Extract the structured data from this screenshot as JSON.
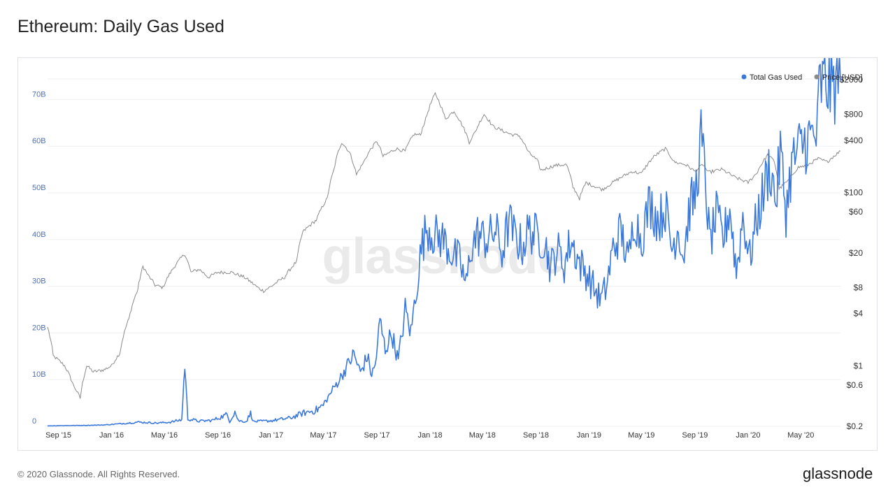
{
  "page": {
    "title": "Ethereum: Daily Gas Used",
    "copyright": "© 2020 Glassnode. All Rights Reserved.",
    "brand": "glassnode",
    "watermark": "glassnode"
  },
  "colors": {
    "gas": "#3a78dc",
    "price": "#8a8a8a",
    "left_axis": "#4c70b8"
  },
  "chart_data": {
    "type": "line",
    "title": "Ethereum: Daily Gas Used",
    "legend": {
      "placement": "top-right",
      "entries": [
        "Total Gas Used",
        "Price [USD]"
      ]
    },
    "grid": true,
    "x_range": [
      "2015-08-07",
      "2020-07-31"
    ],
    "x_ticks": [
      {
        "date": "2015-09-01",
        "label": "Sep '15"
      },
      {
        "date": "2016-01-01",
        "label": "Jan '16"
      },
      {
        "date": "2016-05-01",
        "label": "May '16"
      },
      {
        "date": "2016-09-01",
        "label": "Sep '16"
      },
      {
        "date": "2017-01-01",
        "label": "Jan '17"
      },
      {
        "date": "2017-05-01",
        "label": "May '17"
      },
      {
        "date": "2017-09-01",
        "label": "Sep '17"
      },
      {
        "date": "2018-01-01",
        "label": "Jan '18"
      },
      {
        "date": "2018-05-01",
        "label": "May '18"
      },
      {
        "date": "2018-09-01",
        "label": "Sep '18"
      },
      {
        "date": "2019-01-01",
        "label": "Jan '19"
      },
      {
        "date": "2019-05-01",
        "label": "May '19"
      },
      {
        "date": "2019-09-01",
        "label": "Sep '19"
      },
      {
        "date": "2020-01-01",
        "label": "Jan '20"
      },
      {
        "date": "2020-05-01",
        "label": "May '20"
      }
    ],
    "y_left": {
      "label": "",
      "range": [
        0,
        75000000000
      ],
      "ticks": [
        {
          "value": 0,
          "label": "0"
        },
        {
          "value": 10000000000,
          "label": "10B"
        },
        {
          "value": 20000000000,
          "label": "20B"
        },
        {
          "value": 30000000000,
          "label": "30B"
        },
        {
          "value": 40000000000,
          "label": "40B"
        },
        {
          "value": 50000000000,
          "label": "50B"
        },
        {
          "value": 60000000000,
          "label": "60B"
        },
        {
          "value": 70000000000,
          "label": "70B"
        }
      ]
    },
    "y_right": {
      "label": "",
      "scale": "log",
      "range": [
        0.2,
        2200
      ],
      "ticks": [
        {
          "value": 0.2,
          "label": "$0.2"
        },
        {
          "value": 0.6,
          "label": "$0.6"
        },
        {
          "value": 1,
          "label": "$1"
        },
        {
          "value": 4,
          "label": "$4"
        },
        {
          "value": 8,
          "label": "$8"
        },
        {
          "value": 20,
          "label": "$20"
        },
        {
          "value": 60,
          "label": "$60"
        },
        {
          "value": 100,
          "label": "$100"
        },
        {
          "value": 400,
          "label": "$400"
        },
        {
          "value": 800,
          "label": "$800"
        },
        {
          "value": 2000,
          "label": "$2000"
        }
      ]
    },
    "series": [
      {
        "name": "Total Gas Used",
        "axis": "left",
        "points": [
          [
            "2015-08-07",
            0.1
          ],
          [
            "2015-09-15",
            0.15
          ],
          [
            "2015-11-01",
            0.2
          ],
          [
            "2015-12-15",
            0.3
          ],
          [
            "2016-01-15",
            0.5
          ],
          [
            "2016-03-01",
            0.9
          ],
          [
            "2016-04-15",
            0.7
          ],
          [
            "2016-05-15",
            0.9
          ],
          [
            "2016-06-10",
            1.4
          ],
          [
            "2016-06-17",
            13.2
          ],
          [
            "2016-06-24",
            1.6
          ],
          [
            "2016-07-20",
            1.1
          ],
          [
            "2016-08-20",
            1.3
          ],
          [
            "2016-09-22",
            2.5
          ],
          [
            "2016-09-28",
            1.0
          ],
          [
            "2016-10-10",
            3.2
          ],
          [
            "2016-10-18",
            1.2
          ],
          [
            "2016-11-05",
            1.0
          ],
          [
            "2016-11-15",
            2.8
          ],
          [
            "2016-11-22",
            1.0
          ],
          [
            "2017-01-01",
            1.2
          ],
          [
            "2017-02-15",
            1.8
          ],
          [
            "2017-03-15",
            2.8
          ],
          [
            "2017-04-15",
            3.5
          ],
          [
            "2017-05-01",
            4.5
          ],
          [
            "2017-05-20",
            7.5
          ],
          [
            "2017-06-10",
            10.5
          ],
          [
            "2017-06-25",
            13.0
          ],
          [
            "2017-07-10",
            15.5
          ],
          [
            "2017-07-25",
            11.5
          ],
          [
            "2017-08-10",
            15.0
          ],
          [
            "2017-08-20",
            11.0
          ],
          [
            "2017-08-28",
            13.0
          ],
          [
            "2017-09-08",
            22.5
          ],
          [
            "2017-09-20",
            16.5
          ],
          [
            "2017-10-05",
            20.0
          ],
          [
            "2017-10-20",
            14.0
          ],
          [
            "2017-11-05",
            25.0
          ],
          [
            "2017-11-18",
            20.0
          ],
          [
            "2017-12-01",
            30.0
          ],
          [
            "2017-12-12",
            38.0
          ],
          [
            "2017-12-25",
            43.0
          ],
          [
            "2018-01-10",
            41.0
          ],
          [
            "2018-02-01",
            40.0
          ],
          [
            "2018-02-20",
            37.0
          ],
          [
            "2018-03-10",
            35.5
          ],
          [
            "2018-03-25",
            30.0
          ],
          [
            "2018-04-05",
            38.5
          ],
          [
            "2018-04-20",
            41.0
          ],
          [
            "2018-05-10",
            40.0
          ],
          [
            "2018-06-01",
            42.0
          ],
          [
            "2018-06-15",
            37.0
          ],
          [
            "2018-07-01",
            44.0
          ],
          [
            "2018-07-15",
            40.5
          ],
          [
            "2018-08-01",
            38.5
          ],
          [
            "2018-08-15",
            42.0
          ],
          [
            "2018-09-01",
            41.0
          ],
          [
            "2018-09-20",
            40.0
          ],
          [
            "2018-10-05",
            34.0
          ],
          [
            "2018-10-20",
            38.0
          ],
          [
            "2018-11-05",
            34.5
          ],
          [
            "2018-11-20",
            40.0
          ],
          [
            "2018-12-10",
            35.0
          ],
          [
            "2018-12-25",
            33.0
          ],
          [
            "2019-01-10",
            30.0
          ],
          [
            "2019-01-28",
            27.0
          ],
          [
            "2019-02-10",
            30.0
          ],
          [
            "2019-02-25",
            38.0
          ],
          [
            "2019-03-15",
            42.0
          ],
          [
            "2019-04-01",
            35.0
          ],
          [
            "2019-04-15",
            45.0
          ],
          [
            "2019-05-01",
            40.0
          ],
          [
            "2019-05-20",
            48.0
          ],
          [
            "2019-06-10",
            44.0
          ],
          [
            "2019-06-25",
            47.0
          ],
          [
            "2019-07-10",
            38.0
          ],
          [
            "2019-07-25",
            43.0
          ],
          [
            "2019-08-05",
            36.0
          ],
          [
            "2019-08-20",
            47.0
          ],
          [
            "2019-09-01",
            49.0
          ],
          [
            "2019-09-15",
            61.5
          ],
          [
            "2019-09-25",
            53.0
          ],
          [
            "2019-10-05",
            39.0
          ],
          [
            "2019-10-20",
            45.0
          ],
          [
            "2019-11-05",
            40.0
          ],
          [
            "2019-11-20",
            47.0
          ],
          [
            "2019-12-05",
            33.0
          ],
          [
            "2019-12-20",
            45.0
          ],
          [
            "2020-01-05",
            36.0
          ],
          [
            "2020-01-20",
            44.0
          ],
          [
            "2020-02-05",
            50.0
          ],
          [
            "2020-02-20",
            56.0
          ],
          [
            "2020-03-05",
            48.0
          ],
          [
            "2020-03-15",
            59.0
          ],
          [
            "2020-03-28",
            46.0
          ],
          [
            "2020-04-10",
            56.0
          ],
          [
            "2020-04-25",
            59.0
          ],
          [
            "2020-05-10",
            61.0
          ],
          [
            "2020-05-28",
            62.0
          ],
          [
            "2020-06-08",
            62.5
          ],
          [
            "2020-06-12",
            72.5
          ],
          [
            "2020-06-25",
            73.5
          ],
          [
            "2020-07-10",
            72.5
          ],
          [
            "2020-07-31",
            74.0
          ]
        ]
      },
      {
        "name": "Price [USD]",
        "axis": "right",
        "points": [
          [
            "2015-08-07",
            2.8
          ],
          [
            "2015-08-20",
            1.3
          ],
          [
            "2015-09-15",
            1.0
          ],
          [
            "2015-10-05",
            0.6
          ],
          [
            "2015-10-21",
            0.42
          ],
          [
            "2015-11-05",
            1.0
          ],
          [
            "2015-11-20",
            0.85
          ],
          [
            "2015-12-15",
            0.9
          ],
          [
            "2016-01-01",
            1.0
          ],
          [
            "2016-01-20",
            1.4
          ],
          [
            "2016-02-10",
            3.5
          ],
          [
            "2016-03-01",
            7.5
          ],
          [
            "2016-03-13",
            14.0
          ],
          [
            "2016-03-25",
            11.0
          ],
          [
            "2016-04-10",
            8.5
          ],
          [
            "2016-04-28",
            8.0
          ],
          [
            "2016-05-20",
            13.0
          ],
          [
            "2016-06-17",
            19.5
          ],
          [
            "2016-07-01",
            12.0
          ],
          [
            "2016-07-20",
            13.0
          ],
          [
            "2016-08-10",
            10.5
          ],
          [
            "2016-09-01",
            12.0
          ],
          [
            "2016-10-01",
            12.0
          ],
          [
            "2016-11-01",
            10.5
          ],
          [
            "2016-12-01",
            8.0
          ],
          [
            "2016-12-15",
            7.3
          ],
          [
            "2017-01-01",
            8.2
          ],
          [
            "2017-02-01",
            10.5
          ],
          [
            "2017-03-01",
            16.0
          ],
          [
            "2017-03-15",
            35.0
          ],
          [
            "2017-04-15",
            48.0
          ],
          [
            "2017-05-10",
            85.0
          ],
          [
            "2017-05-25",
            180.0
          ],
          [
            "2017-06-12",
            380.0
          ],
          [
            "2017-06-30",
            290.0
          ],
          [
            "2017-07-16",
            160.0
          ],
          [
            "2017-08-01",
            220.0
          ],
          [
            "2017-08-15",
            300.0
          ],
          [
            "2017-09-01",
            390.0
          ],
          [
            "2017-09-15",
            260.0
          ],
          [
            "2017-10-15",
            320.0
          ],
          [
            "2017-11-05",
            300.0
          ],
          [
            "2017-11-25",
            470.0
          ],
          [
            "2017-12-10",
            460.0
          ],
          [
            "2017-12-22",
            700.0
          ],
          [
            "2018-01-13",
            1380.0
          ],
          [
            "2018-02-05",
            700.0
          ],
          [
            "2018-02-25",
            870.0
          ],
          [
            "2018-03-15",
            610.0
          ],
          [
            "2018-04-01",
            380.0
          ],
          [
            "2018-04-15",
            500.0
          ],
          [
            "2018-05-05",
            800.0
          ],
          [
            "2018-05-25",
            580.0
          ],
          [
            "2018-06-15",
            520.0
          ],
          [
            "2018-07-05",
            470.0
          ],
          [
            "2018-07-25",
            450.0
          ],
          [
            "2018-08-15",
            290.0
          ],
          [
            "2018-09-05",
            230.0
          ],
          [
            "2018-09-12",
            180.0
          ],
          [
            "2018-10-15",
            205.0
          ],
          [
            "2018-11-10",
            210.0
          ],
          [
            "2018-11-25",
            115.0
          ],
          [
            "2018-12-10",
            85.0
          ],
          [
            "2018-12-25",
            130.0
          ],
          [
            "2019-01-10",
            120.0
          ],
          [
            "2019-02-01",
            108.0
          ],
          [
            "2019-03-01",
            135.0
          ],
          [
            "2019-04-10",
            175.0
          ],
          [
            "2019-05-01",
            165.0
          ],
          [
            "2019-05-30",
            260.0
          ],
          [
            "2019-06-25",
            320.0
          ],
          [
            "2019-07-15",
            225.0
          ],
          [
            "2019-08-10",
            210.0
          ],
          [
            "2019-09-01",
            175.0
          ],
          [
            "2019-09-20",
            210.0
          ],
          [
            "2019-10-01",
            170.0
          ],
          [
            "2019-11-01",
            185.0
          ],
          [
            "2019-12-01",
            150.0
          ],
          [
            "2020-01-01",
            130.0
          ],
          [
            "2020-01-20",
            165.0
          ],
          [
            "2020-02-15",
            270.0
          ],
          [
            "2020-03-01",
            230.0
          ],
          [
            "2020-03-12",
            110.0
          ],
          [
            "2020-04-01",
            135.0
          ],
          [
            "2020-04-25",
            195.0
          ],
          [
            "2020-05-15",
            205.0
          ],
          [
            "2020-06-10",
            245.0
          ],
          [
            "2020-06-30",
            225.0
          ],
          [
            "2020-07-31",
            300.0
          ]
        ]
      }
    ]
  }
}
